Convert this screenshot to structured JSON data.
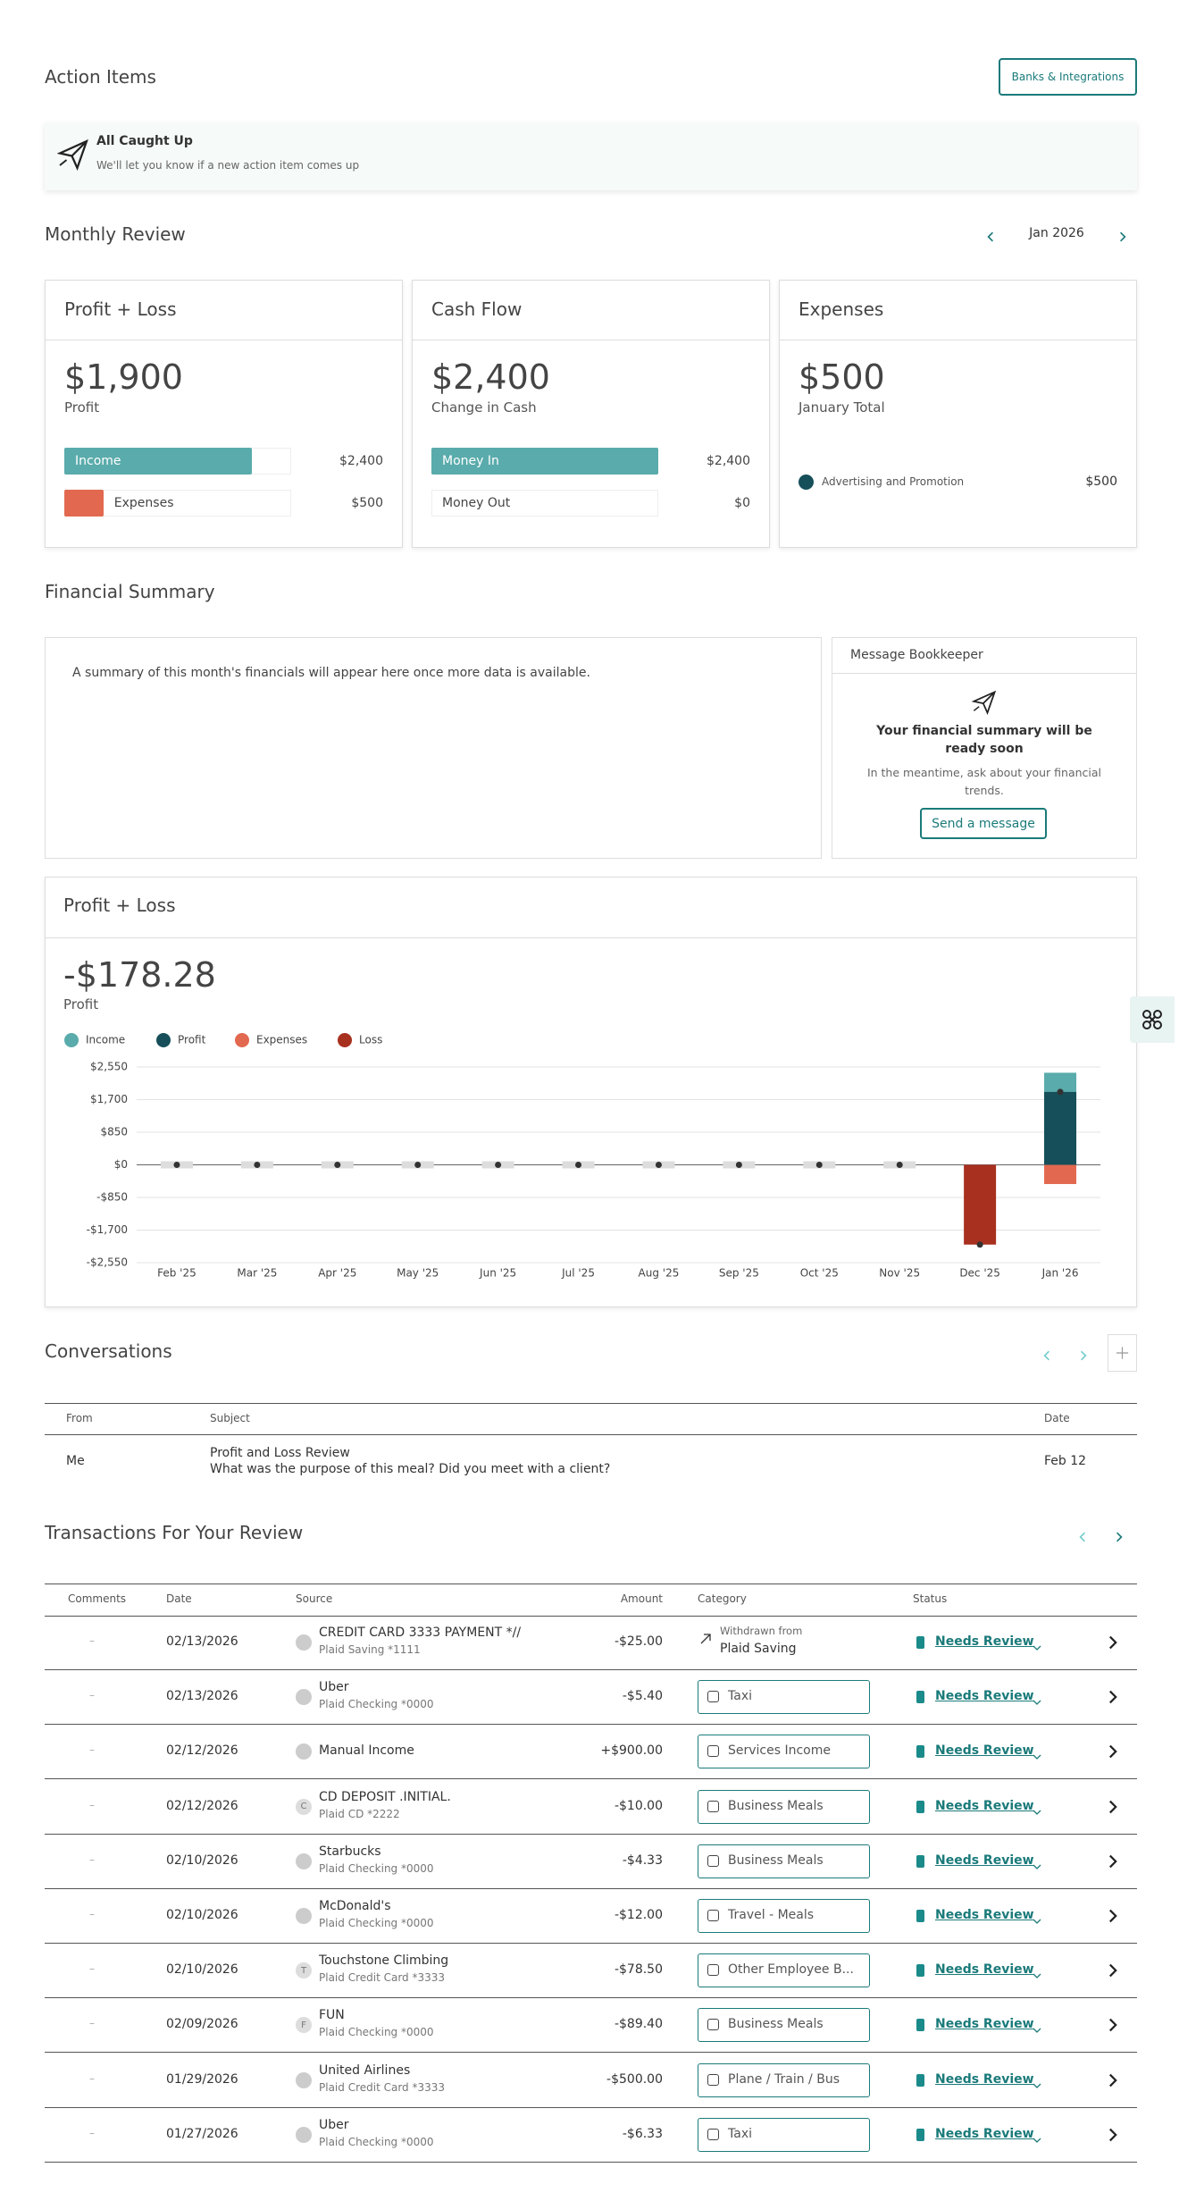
{
  "action_items": {
    "title": "Action Items",
    "button": "Banks & Integrations",
    "status_title": "All Caught Up",
    "status_text": "We'll let you know if a new action item comes up"
  },
  "monthly_review": {
    "title": "Monthly Review",
    "month": "Jan 2026",
    "cards": [
      {
        "title": "Profit + Loss",
        "amount": "$1,900",
        "amount_label": "Profit",
        "bars": [
          {
            "name": "Income",
            "value": 2400,
            "label": "$2,400",
            "color": "#5aabab"
          },
          {
            "name": "Expenses",
            "value": 500,
            "label": "$500",
            "color": "#e2694f"
          }
        ]
      },
      {
        "title": "Cash Flow",
        "amount": "$2,400",
        "amount_label": "Change in Cash",
        "bars": [
          {
            "name": "Money In",
            "value": 2400,
            "label": "$2,400",
            "color": "#5aabab"
          },
          {
            "name": "Money Out",
            "value": 0,
            "label": "$0",
            "color": "#5aabab"
          }
        ]
      },
      {
        "title": "Expenses",
        "amount": "$500",
        "amount_label": "January Total",
        "items": [
          {
            "name": "Advertising and Promotion",
            "label": "$500",
            "color": "#164f5a"
          }
        ]
      }
    ]
  },
  "financial_summary": {
    "title": "Financial Summary",
    "text": "A summary of this month's financials will appear here once more data is available.",
    "bookkeeper": {
      "title": "Message Bookkeeper",
      "heading": "Your financial summary will be ready soon",
      "text": "In the meantime, ask about your financial trends.",
      "button": "Send a message"
    }
  },
  "chart_data": {
    "type": "bar",
    "title": "Profit + Loss",
    "headline": "-$178.28",
    "headline_label": "Profit",
    "categories": [
      "Feb '25",
      "Mar '25",
      "Apr '25",
      "May '25",
      "Jun '25",
      "Jul '25",
      "Aug '25",
      "Sep '25",
      "Oct '25",
      "Nov '25",
      "Dec '25",
      "Jan '26"
    ],
    "series": [
      {
        "name": "Income",
        "color": "#5aabab",
        "values": [
          0,
          0,
          0,
          0,
          0,
          0,
          0,
          0,
          0,
          0,
          0,
          2400
        ]
      },
      {
        "name": "Profit",
        "color": "#164f5a",
        "values": [
          0,
          0,
          0,
          0,
          0,
          0,
          0,
          0,
          0,
          0,
          0,
          1900
        ]
      },
      {
        "name": "Expenses",
        "color": "#e2694f",
        "values": [
          0,
          0,
          0,
          0,
          0,
          0,
          0,
          0,
          0,
          0,
          0,
          -500
        ]
      },
      {
        "name": "Loss",
        "color": "#a8301f",
        "values": [
          0,
          0,
          0,
          0,
          0,
          0,
          0,
          0,
          0,
          0,
          -2078.28,
          0
        ]
      }
    ],
    "ylim": [
      -2550,
      2550
    ],
    "yticks": [
      {
        "value": 2550,
        "label": "$2,550"
      },
      {
        "value": 1700,
        "label": "$1,700"
      },
      {
        "value": 850,
        "label": "$850"
      },
      {
        "value": 0,
        "label": "$0"
      },
      {
        "value": -850,
        "label": "-$850"
      },
      {
        "value": -1700,
        "label": "-$1,700"
      },
      {
        "value": -2550,
        "label": "-$2,550"
      }
    ],
    "grid": true,
    "legend": "top-left"
  },
  "conversations": {
    "title": "Conversations",
    "columns": [
      "From",
      "Subject",
      "Date"
    ],
    "rows": [
      {
        "from": "Me",
        "subject": "Profit and Loss Review",
        "message": "What was the purpose of this meal? Did you meet with a client?",
        "date": "Feb 12"
      }
    ]
  },
  "transactions": {
    "title": "Transactions For Your Review",
    "columns": [
      "Comments",
      "Date",
      "Source",
      "Amount",
      "Category",
      "Status"
    ],
    "rows": [
      {
        "comments": "–",
        "date": "02/13/2026",
        "source": "CREDIT CARD 3333 PAYMENT *//",
        "account": "Plaid Saving *1111",
        "amount": "-$25.00",
        "category_note": "Withdrawn from",
        "category": "Plaid Saving",
        "status": "Needs Review"
      },
      {
        "comments": "–",
        "date": "02/13/2026",
        "source": "Uber",
        "account": "Plaid Checking *0000",
        "amount": "-$5.40",
        "category": "Taxi",
        "status": "Needs Review"
      },
      {
        "comments": "–",
        "date": "02/12/2026",
        "source": "Manual Income",
        "amount": "+$900.00",
        "category": "Services Income",
        "status": "Needs Review"
      },
      {
        "comments": "–",
        "date": "02/12/2026",
        "source": "CD DEPOSIT .INITIAL.",
        "account": "Plaid CD *2222",
        "icon": "C",
        "amount": "-$10.00",
        "category": "Business Meals",
        "status": "Needs Review"
      },
      {
        "comments": "–",
        "date": "02/10/2026",
        "source": "Starbucks",
        "account": "Plaid Checking *0000",
        "amount": "-$4.33",
        "category": "Business Meals",
        "status": "Needs Review"
      },
      {
        "comments": "–",
        "date": "02/10/2026",
        "source": "McDonald's",
        "account": "Plaid Checking *0000",
        "amount": "-$12.00",
        "category": "Travel - Meals",
        "status": "Needs Review"
      },
      {
        "comments": "–",
        "date": "02/10/2026",
        "source": "Touchstone Climbing",
        "account": "Plaid Credit Card *3333",
        "icon": "T",
        "amount": "-$78.50",
        "category": "Other Employee B...",
        "status": "Needs Review"
      },
      {
        "comments": "–",
        "date": "02/09/2026",
        "source": "FUN",
        "account": "Plaid Checking *0000",
        "icon": "F",
        "amount": "-$89.40",
        "category": "Business Meals",
        "status": "Needs Review"
      },
      {
        "comments": "–",
        "date": "01/29/2026",
        "source": "United Airlines",
        "account": "Plaid Credit Card *3333",
        "amount": "-$500.00",
        "category": "Plane / Train / Bus",
        "status": "Needs Review"
      },
      {
        "comments": "–",
        "date": "01/27/2026",
        "source": "Uber",
        "account": "Plaid Checking *0000",
        "amount": "-$6.33",
        "category": "Taxi",
        "status": "Needs Review"
      }
    ]
  }
}
